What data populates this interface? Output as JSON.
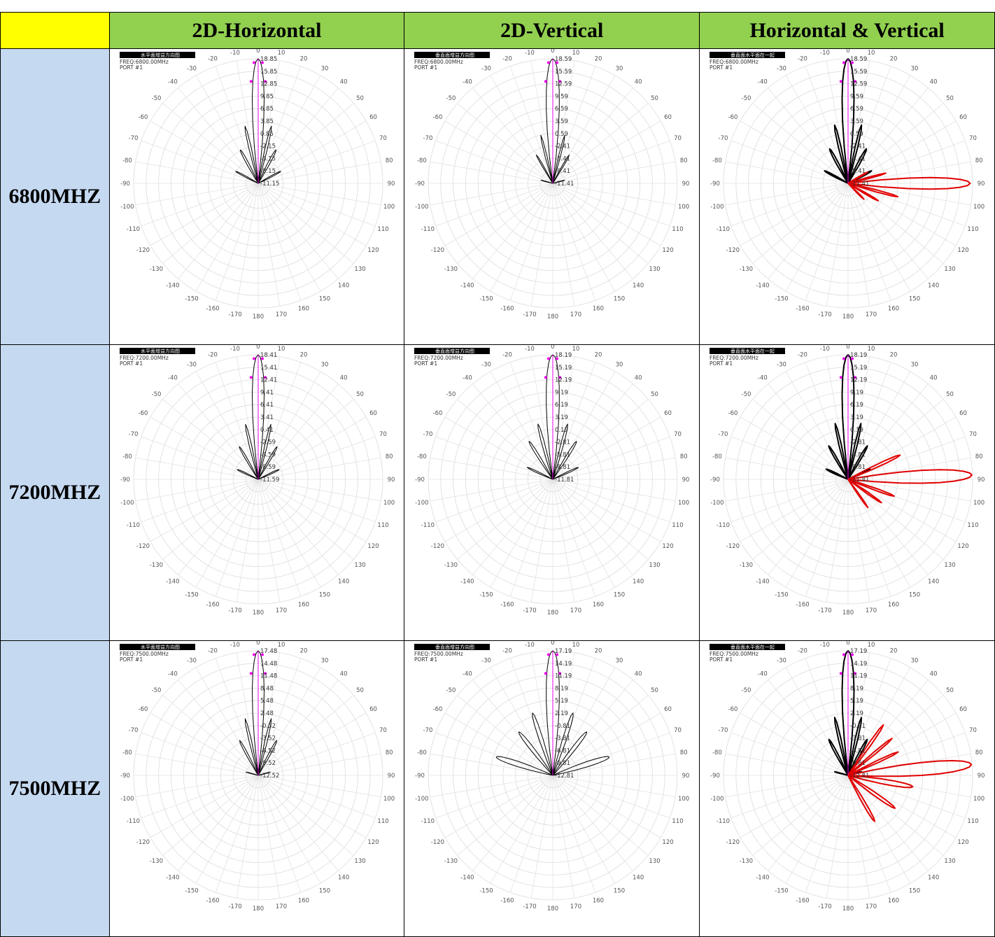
{
  "headers": [
    "2D-Horizontal",
    "2D-Vertical",
    "Horizontal & Vertical"
  ],
  "colors": {
    "header_bg": "#92d050",
    "corner_bg": "#ffff00",
    "freq_bg": "#c5d9f1",
    "h_trace": "#000000",
    "v_trace": "#e00000",
    "marker": "#ee00ee"
  },
  "angle_ticks": [
    "0",
    "10",
    "20",
    "30",
    "40",
    "50",
    "60",
    "70",
    "80",
    "90",
    "100",
    "110",
    "120",
    "130",
    "140",
    "150",
    "160",
    "170",
    "180",
    "-170",
    "-160",
    "-150",
    "-140",
    "-130",
    "-120",
    "-110",
    "-100",
    "-90",
    "-80",
    "-70",
    "-60",
    "-50",
    "-40",
    "-30",
    "-20",
    "-10"
  ],
  "rows": [
    {
      "freq_label": "6800MHZ",
      "freq_text": "FREQ:6800.00MHz",
      "port": "PORT #1",
      "cells": [
        {
          "title": "水平面增益方向图",
          "radial_labels": [
            "18.85",
            "15.85",
            "12.85",
            "9.85",
            "6.85",
            "3.85",
            "0.85",
            "-2.15",
            "-5.15",
            "-8.15",
            "-11.15"
          ]
        },
        {
          "title": "垂直面增益方向图",
          "radial_labels": [
            "18.59",
            "15.59",
            "12.59",
            "9.59",
            "6.59",
            "3.59",
            "0.59",
            "-2.41",
            "-5.41",
            "-8.41",
            "-11.41"
          ]
        },
        {
          "title": "垂直面水平面在一起",
          "radial_labels": [
            "18.59",
            "15.59",
            "12.59",
            "9.59",
            "6.59",
            "3.59",
            "0.59",
            "-2.41",
            "-5.41",
            "-8.41",
            "-11.41"
          ]
        }
      ]
    },
    {
      "freq_label": "7200MHZ",
      "freq_text": "FREQ:7200.00MHz",
      "port": "PORT #1",
      "cells": [
        {
          "title": "水平面增益方向图",
          "radial_labels": [
            "18.41",
            "15.41",
            "12.41",
            "9.41",
            "6.41",
            "3.41",
            "0.41",
            "-2.59",
            "-5.59",
            "-8.59",
            "-11.59"
          ]
        },
        {
          "title": "垂直面增益方向图",
          "radial_labels": [
            "18.19",
            "15.19",
            "12.19",
            "9.19",
            "6.19",
            "3.19",
            "0.19",
            "-2.81",
            "-5.81",
            "-8.81",
            "-11.81"
          ]
        },
        {
          "title": "垂直面水平面在一起",
          "radial_labels": [
            "18.19",
            "15.19",
            "12.19",
            "9.19",
            "6.19",
            "3.19",
            "0.19",
            "-2.81",
            "-5.81",
            "-8.81",
            "-11.81"
          ]
        }
      ]
    },
    {
      "freq_label": "7500MHZ",
      "freq_text": "FREQ:7500.00MHz",
      "port": "PORT #1",
      "cells": [
        {
          "title": "水平面增益方向图",
          "radial_labels": [
            "17.48",
            "14.48",
            "11.48",
            "8.48",
            "5.48",
            "2.48",
            "-0.52",
            "-3.52",
            "-6.52",
            "-9.52",
            "-12.52"
          ]
        },
        {
          "title": "垂直面增益方向图",
          "radial_labels": [
            "17.19",
            "14.19",
            "11.19",
            "8.19",
            "5.19",
            "2.19",
            "-0.81",
            "-3.81",
            "-6.81",
            "-9.81",
            "-12.81"
          ]
        },
        {
          "title": "垂直面水平面在一起",
          "radial_labels": [
            "17.19",
            "14.19",
            "11.19",
            "8.19",
            "5.19",
            "2.19",
            "-0.81",
            "-3.81",
            "-6.81",
            "-9.81",
            "-12.81"
          ]
        }
      ]
    }
  ],
  "chart_data": [
    {
      "type": "polar",
      "frequency": "6800MHz",
      "view": "2D-Horizontal",
      "angle_range": [
        -180,
        180
      ],
      "radial_range_dB": [
        -11.15,
        18.85
      ],
      "series": [
        {
          "lobes": [
            [
              0,
              18.85,
              4.5
            ],
            [
              -13,
              3.0,
              3.0
            ],
            [
              13,
              3.0,
              3.0
            ],
            [
              -28,
              -2.0,
              5.0
            ],
            [
              28,
              -2.0,
              5.0
            ],
            [
              -62,
              -5.0,
              5.5
            ],
            [
              62,
              -5.0,
              5.5
            ]
          ],
          "floor": -11.15
        }
      ]
    },
    {
      "type": "polar",
      "frequency": "6800MHz",
      "view": "2D-Vertical",
      "angle_range": [
        -180,
        180
      ],
      "radial_range_dB": [
        -11.41,
        18.59
      ],
      "series": [
        {
          "lobes": [
            [
              0,
              18.59,
              5.0
            ],
            [
              -14,
              0.5,
              3.0
            ],
            [
              14,
              0.5,
              3.0
            ],
            [
              -30,
              -3.5,
              4.0
            ],
            [
              30,
              -3.5,
              4.0
            ],
            [
              -75,
              -8.5,
              6.0
            ],
            [
              75,
              -8.5,
              6.0
            ]
          ],
          "floor": -11.41
        }
      ]
    },
    {
      "type": "polar",
      "frequency": "6800MHz",
      "view": "Horizontal & Vertical",
      "angle_range": [
        -180,
        180
      ],
      "radial_range_dB": [
        -11.41,
        18.59
      ],
      "series": [
        {
          "lobes": [
            [
              0,
              18.59,
              4.5
            ],
            [
              -13,
              3.0,
              3.0
            ],
            [
              13,
              3.0,
              3.0
            ],
            [
              -28,
              -2.0,
              5.0
            ],
            [
              28,
              -2.0,
              5.0
            ],
            [
              -62,
              -5.0,
              5.5
            ],
            [
              62,
              -5.0,
              5.5
            ]
          ],
          "floor": -11.41
        },
        {
          "lobes": [
            [
              90,
              18.0,
              4.5
            ],
            [
              105,
              1.0,
              3.0
            ],
            [
              75,
              -2.0,
              3.0
            ],
            [
              120,
              -3.0,
              3.5
            ],
            [
              135,
              -6.0,
              4.0
            ],
            [
              60,
              -6.0,
              4.0
            ]
          ],
          "floor": -11.41
        }
      ]
    },
    {
      "type": "polar",
      "frequency": "7200MHz",
      "view": "2D-Horizontal",
      "angle_range": [
        -180,
        180
      ],
      "radial_range_dB": [
        -11.59,
        18.41
      ],
      "series": [
        {
          "lobes": [
            [
              0,
              18.41,
              4.5
            ],
            [
              -13,
              2.0,
              3.0
            ],
            [
              13,
              2.0,
              3.0
            ],
            [
              -30,
              -2.5,
              4.5
            ],
            [
              30,
              -2.5,
              4.5
            ],
            [
              -65,
              -6.0,
              6.0
            ],
            [
              65,
              -6.0,
              6.0
            ]
          ],
          "floor": -11.59
        }
      ]
    },
    {
      "type": "polar",
      "frequency": "7200MHz",
      "view": "2D-Vertical",
      "angle_range": [
        -180,
        180
      ],
      "radial_range_dB": [
        -11.81,
        18.19
      ],
      "series": [
        {
          "lobes": [
            [
              0,
              18.19,
              5.0
            ],
            [
              -15,
              2.0,
              3.5
            ],
            [
              15,
              2.0,
              3.5
            ],
            [
              -32,
              -1.0,
              4.5
            ],
            [
              32,
              -1.0,
              4.5
            ],
            [
              -65,
              -5.0,
              5.0
            ],
            [
              65,
              -5.0,
              5.0
            ]
          ],
          "floor": -11.81
        }
      ]
    },
    {
      "type": "polar",
      "frequency": "7200MHz",
      "view": "Horizontal & Vertical",
      "angle_range": [
        -180,
        180
      ],
      "radial_range_dB": [
        -11.81,
        18.19
      ],
      "series": [
        {
          "lobes": [
            [
              0,
              18.19,
              4.5
            ],
            [
              -13,
              2.0,
              3.0
            ],
            [
              13,
              2.0,
              3.0
            ],
            [
              -30,
              -2.5,
              4.5
            ],
            [
              30,
              -2.5,
              4.5
            ],
            [
              -65,
              -6.0,
              6.0
            ],
            [
              65,
              -6.0,
              6.0
            ]
          ],
          "floor": -11.81
        },
        {
          "lobes": [
            [
              88,
              18.0,
              5.0
            ],
            [
              65,
              2.0,
              3.5
            ],
            [
              110,
              0.0,
              3.5
            ],
            [
              125,
              -2.0,
              3.5
            ],
            [
              145,
              -3.5,
              3.0
            ]
          ],
          "floor": -11.81
        }
      ]
    },
    {
      "type": "polar",
      "frequency": "7500MHz",
      "view": "2D-Horizontal",
      "angle_range": [
        -180,
        180
      ],
      "radial_range_dB": [
        -12.52,
        17.48
      ],
      "series": [
        {
          "lobes": [
            [
              0,
              17.48,
              4.5
            ],
            [
              -13,
              1.5,
              3.0
            ],
            [
              13,
              1.5,
              3.0
            ],
            [
              -28,
              -3.0,
              4.5
            ],
            [
              28,
              -3.0,
              4.5
            ],
            [
              -75,
              -9.5,
              4.5
            ],
            [
              75,
              -9.5,
              4.5
            ]
          ],
          "floor": -12.52
        }
      ]
    },
    {
      "type": "polar",
      "frequency": "7500MHz",
      "view": "2D-Vertical",
      "angle_range": [
        -180,
        180
      ],
      "radial_range_dB": [
        -12.81,
        17.19
      ],
      "series": [
        {
          "lobes": [
            [
              0,
              17.19,
              5.0
            ],
            [
              -18,
              3.0,
              4.0
            ],
            [
              18,
              3.0,
              4.0
            ],
            [
              -38,
              0.5,
              5.0
            ],
            [
              38,
              0.5,
              5.0
            ],
            [
              -72,
              1.5,
              6.0
            ],
            [
              72,
              1.5,
              6.0
            ]
          ],
          "floor": -12.81
        }
      ]
    },
    {
      "type": "polar",
      "frequency": "7500MHz",
      "view": "Horizontal & Vertical",
      "angle_range": [
        -180,
        180
      ],
      "radial_range_dB": [
        -12.81,
        17.19
      ],
      "series": [
        {
          "lobes": [
            [
              0,
              17.19,
              4.5
            ],
            [
              -13,
              1.5,
              3.0
            ],
            [
              13,
              1.5,
              3.0
            ],
            [
              -28,
              -3.0,
              4.5
            ],
            [
              28,
              -3.0,
              4.5
            ],
            [
              -75,
              -9.5,
              4.5
            ],
            [
              75,
              -9.5,
              4.5
            ]
          ],
          "floor": -12.81
        },
        {
          "lobes": [
            [
              85,
              17.0,
              5.0
            ],
            [
              35,
              2.0,
              3.0
            ],
            [
              50,
              1.0,
              3.0
            ],
            [
              65,
              0.5,
              3.0
            ],
            [
              100,
              3.0,
              5.0
            ],
            [
              125,
              1.0,
              4.0
            ],
            [
              150,
              0.0,
              4.0
            ]
          ],
          "floor": -12.81
        }
      ]
    }
  ]
}
